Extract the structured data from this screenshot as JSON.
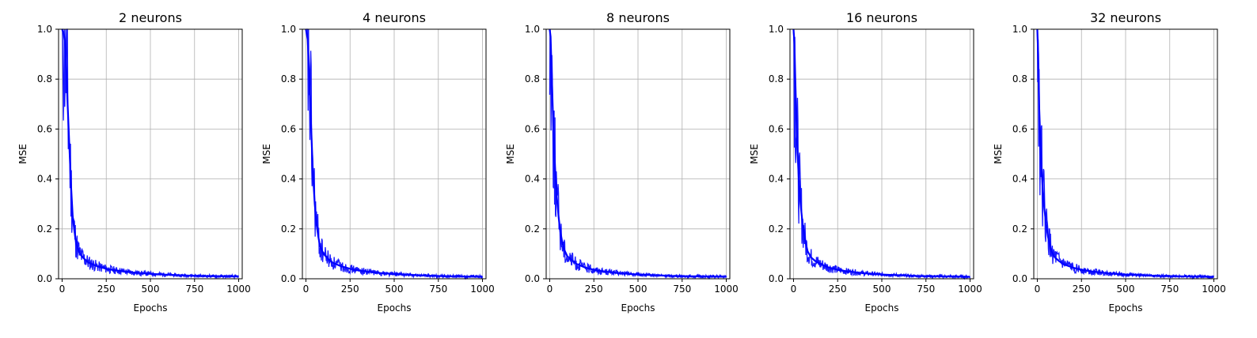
{
  "figure": {
    "colors": {
      "line": "#0000ff",
      "grid": "#b0b0b0",
      "frame": "#000000",
      "background": "#ffffff"
    }
  },
  "chart_data": [
    {
      "type": "line",
      "title": "2 neurons",
      "xlabel": "Epochs",
      "ylabel": "MSE",
      "xlim": [
        -20,
        1020
      ],
      "ylim": [
        0.0,
        1.0
      ],
      "xticks": [
        0,
        250,
        500,
        750,
        1000
      ],
      "xtick_labels": [
        "0",
        "250",
        "500",
        "750",
        "1000"
      ],
      "yticks": [
        0.0,
        0.2,
        0.4,
        0.6,
        0.8,
        1.0
      ],
      "ytick_labels": [
        "0.0",
        "0.2",
        "0.4",
        "0.6",
        "0.8",
        "1.0"
      ],
      "grid": true,
      "series": [
        {
          "color": "#0000ff",
          "x": [
            0,
            10,
            20,
            30,
            40,
            50,
            60,
            70,
            80,
            100,
            125,
            150,
            200,
            250,
            300,
            400,
            500,
            600,
            700,
            800,
            900,
            1000
          ],
          "y": [
            1.0,
            0.98,
            0.92,
            0.72,
            0.55,
            0.38,
            0.25,
            0.19,
            0.14,
            0.1,
            0.08,
            0.065,
            0.05,
            0.04,
            0.034,
            0.025,
            0.02,
            0.016,
            0.013,
            0.011,
            0.01,
            0.009
          ]
        }
      ]
    },
    {
      "type": "line",
      "title": "4 neurons",
      "xlabel": "Epochs",
      "ylabel": "MSE",
      "xlim": [
        -20,
        1020
      ],
      "ylim": [
        0.0,
        1.0
      ],
      "xticks": [
        0,
        250,
        500,
        750,
        1000
      ],
      "xtick_labels": [
        "0",
        "250",
        "500",
        "750",
        "1000"
      ],
      "yticks": [
        0.0,
        0.2,
        0.4,
        0.6,
        0.8,
        1.0
      ],
      "ytick_labels": [
        "0.0",
        "0.2",
        "0.4",
        "0.6",
        "0.8",
        "1.0"
      ],
      "grid": true,
      "series": [
        {
          "color": "#0000ff",
          "x": [
            0,
            10,
            20,
            30,
            40,
            50,
            60,
            70,
            80,
            100,
            125,
            150,
            200,
            250,
            300,
            400,
            500,
            600,
            700,
            800,
            900,
            1000
          ],
          "y": [
            1.0,
            0.96,
            0.8,
            0.6,
            0.42,
            0.3,
            0.22,
            0.17,
            0.13,
            0.1,
            0.08,
            0.065,
            0.05,
            0.04,
            0.033,
            0.024,
            0.019,
            0.015,
            0.012,
            0.01,
            0.009,
            0.008
          ]
        }
      ]
    },
    {
      "type": "line",
      "title": "8 neurons",
      "xlabel": "Epochs",
      "ylabel": "MSE",
      "xlim": [
        -20,
        1020
      ],
      "ylim": [
        0.0,
        1.0
      ],
      "xticks": [
        0,
        250,
        500,
        750,
        1000
      ],
      "xtick_labels": [
        "0",
        "250",
        "500",
        "750",
        "1000"
      ],
      "yticks": [
        0.0,
        0.2,
        0.4,
        0.6,
        0.8,
        1.0
      ],
      "ytick_labels": [
        "0.0",
        "0.2",
        "0.4",
        "0.6",
        "0.8",
        "1.0"
      ],
      "grid": true,
      "series": [
        {
          "color": "#0000ff",
          "x": [
            0,
            5,
            10,
            20,
            30,
            40,
            50,
            60,
            70,
            80,
            100,
            125,
            150,
            200,
            250,
            300,
            400,
            500,
            600,
            700,
            800,
            900,
            1000
          ],
          "y": [
            1.0,
            0.97,
            0.85,
            0.62,
            0.45,
            0.33,
            0.25,
            0.19,
            0.15,
            0.12,
            0.09,
            0.075,
            0.06,
            0.045,
            0.036,
            0.03,
            0.022,
            0.017,
            0.014,
            0.011,
            0.01,
            0.009,
            0.008
          ]
        }
      ]
    },
    {
      "type": "line",
      "title": "16 neurons",
      "xlabel": "Epochs",
      "ylabel": "MSE",
      "xlim": [
        -20,
        1020
      ],
      "ylim": [
        0.0,
        1.0
      ],
      "xticks": [
        0,
        250,
        500,
        750,
        1000
      ],
      "xtick_labels": [
        "0",
        "250",
        "500",
        "750",
        "1000"
      ],
      "yticks": [
        0.0,
        0.2,
        0.4,
        0.6,
        0.8,
        1.0
      ],
      "ytick_labels": [
        "0.0",
        "0.2",
        "0.4",
        "0.6",
        "0.8",
        "1.0"
      ],
      "grid": true,
      "series": [
        {
          "color": "#0000ff",
          "x": [
            0,
            5,
            10,
            20,
            30,
            40,
            50,
            60,
            70,
            80,
            100,
            125,
            150,
            200,
            250,
            300,
            400,
            500,
            600,
            700,
            800,
            900,
            1000
          ],
          "y": [
            1.0,
            0.95,
            0.8,
            0.55,
            0.4,
            0.3,
            0.23,
            0.18,
            0.14,
            0.11,
            0.085,
            0.07,
            0.06,
            0.045,
            0.036,
            0.03,
            0.022,
            0.017,
            0.014,
            0.011,
            0.01,
            0.009,
            0.008
          ]
        }
      ]
    },
    {
      "type": "line",
      "title": "32 neurons",
      "xlabel": "Epochs",
      "ylabel": "MSE",
      "xlim": [
        -20,
        1020
      ],
      "ylim": [
        0.0,
        1.0
      ],
      "xticks": [
        0,
        250,
        500,
        750,
        1000
      ],
      "xtick_labels": [
        "0",
        "250",
        "500",
        "750",
        "1000"
      ],
      "yticks": [
        0.0,
        0.2,
        0.4,
        0.6,
        0.8,
        1.0
      ],
      "ytick_labels": [
        "0.0",
        "0.2",
        "0.4",
        "0.6",
        "0.8",
        "1.0"
      ],
      "grid": true,
      "series": [
        {
          "color": "#0000ff",
          "x": [
            0,
            5,
            10,
            20,
            30,
            40,
            50,
            60,
            70,
            80,
            100,
            125,
            150,
            200,
            250,
            300,
            400,
            500,
            600,
            700,
            800,
            900,
            1000
          ],
          "y": [
            1.0,
            0.9,
            0.7,
            0.5,
            0.37,
            0.28,
            0.22,
            0.17,
            0.14,
            0.11,
            0.085,
            0.07,
            0.058,
            0.045,
            0.036,
            0.03,
            0.022,
            0.017,
            0.014,
            0.011,
            0.01,
            0.009,
            0.008
          ]
        }
      ]
    }
  ]
}
